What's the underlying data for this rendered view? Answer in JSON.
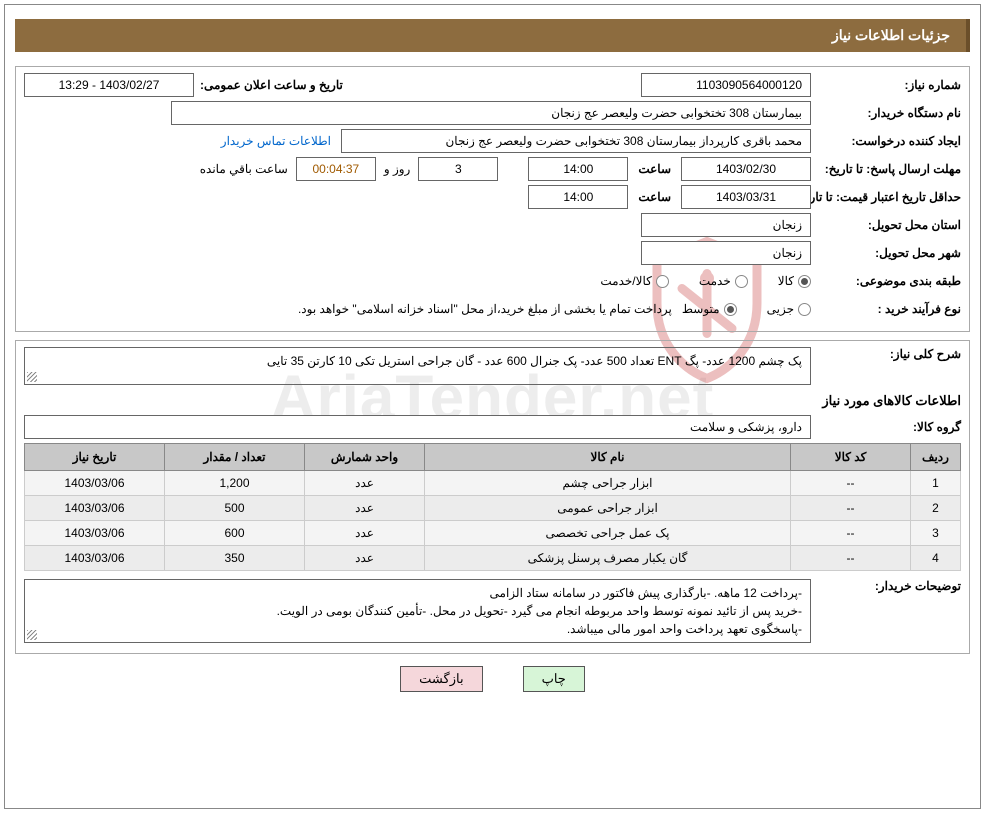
{
  "header": {
    "title": "جزئیات اطلاعات نیاز"
  },
  "fields": {
    "need_no_label": "شماره نیاز:",
    "need_no": "1103090564000120",
    "announce_label": "تاریخ و ساعت اعلان عمومی:",
    "announce_value": "1403/02/27 - 13:29",
    "buyer_org_label": "نام دستگاه خریدار:",
    "buyer_org": "بیمارستان 308 تختخوابی حضرت ولیعصر عج  زنجان",
    "requester_label": "ایجاد کننده درخواست:",
    "requester": "محمد باقری کارپرداز بیمارستان 308 تختخوابی حضرت ولیعصر عج  زنجان",
    "contact_link": "اطلاعات تماس خریدار",
    "reply_deadline_label": "مهلت ارسال پاسخ:  تا تاریخ:",
    "reply_deadline_date": "1403/02/30",
    "time_label": "ساعت",
    "reply_deadline_time": "14:00",
    "days_and": "روز و",
    "days_value": "3",
    "countdown": "00:04:37",
    "remaining_label": "ساعت باقي مانده",
    "price_valid_label": "حداقل تاریخ اعتبار قیمت: تا تاریخ:",
    "price_valid_date": "1403/03/31",
    "price_valid_time": "14:00",
    "province_label": "استان محل تحویل:",
    "province": "زنجان",
    "city_label": "شهر محل تحویل:",
    "city": "زنجان",
    "category_label": "طبقه بندی موضوعی:",
    "cat_goods": "کالا",
    "cat_service": "خدمت",
    "cat_goods_service": "کالا/خدمت",
    "purchase_type_label": "نوع فرآیند خرید :",
    "pt_minor": "جزیی",
    "pt_medium": "متوسط",
    "purchase_type_note": "پرداخت تمام یا بخشی از مبلغ خرید،از محل \"اسناد خزانه اسلامی\" خواهد بود.",
    "general_desc_label": "شرح کلی نیاز:",
    "general_desc": "پک چشم 1200 عدد- پگ ENT تعداد 500 عدد- پک جنرال 600 عدد - گان جراحی استریل تکی 10 کارتن 35 تایی",
    "items_title": "اطلاعات کالاهای مورد نیاز",
    "group_label": "گروه کالا:",
    "group_value": "دارو، پزشکی و سلامت",
    "buyer_notes_label": "توضیحات خریدار:",
    "buyer_notes": "-پرداخت 12 ماهه. -بارگذاری پیش فاکتور در سامانه ستاد الزامی\n-خرید پس از تائید نمونه توسط واحد مربوطه انجام می گیرد -تحویل در محل. -تأمین کنندگان بومی در الویت.\n-پاسخگوی تعهد پرداخت واحد امور مالی میباشد."
  },
  "table": {
    "columns": [
      "ردیف",
      "کد کالا",
      "نام کالا",
      "واحد شمارش",
      "تعداد / مقدار",
      "تاریخ نیاز"
    ],
    "col_widths": [
      "50px",
      "120px",
      "auto",
      "120px",
      "140px",
      "140px"
    ],
    "rows": [
      [
        "1",
        "--",
        "ابزار جراحی چشم",
        "عدد",
        "1,200",
        "1403/03/06"
      ],
      [
        "2",
        "--",
        "ابزار جراحی عمومی",
        "عدد",
        "500",
        "1403/03/06"
      ],
      [
        "3",
        "--",
        "پک عمل جراحی تخصصی",
        "عدد",
        "600",
        "1403/03/06"
      ],
      [
        "4",
        "--",
        "گان یکبار مصرف پرسنل پزشکی",
        "عدد",
        "350",
        "1403/03/06"
      ]
    ]
  },
  "buttons": {
    "print": "چاپ",
    "back": "بازگشت"
  },
  "watermark": {
    "text": "AriaTender.net"
  },
  "colors": {
    "header_bg": "#8d6c3f",
    "header_border": "#6b4f2a",
    "table_header_bg": "#c8c8c8",
    "btn_print_bg": "#d7f5d7",
    "btn_back_bg": "#f5d7db",
    "watermark_color": "#d0d0d0",
    "shield_stroke": "#c94b4b"
  }
}
